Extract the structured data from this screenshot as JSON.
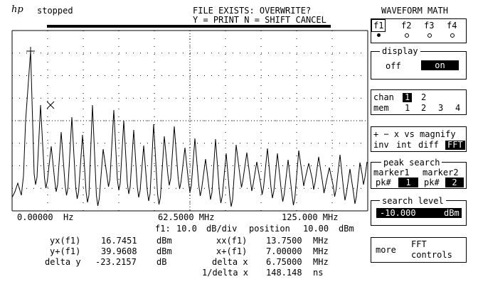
{
  "status": {
    "brand": "hp",
    "run_state": "stopped"
  },
  "prompt": {
    "line1": "FILE EXISTS: OVERWRITE?",
    "line2": "Y = PRINT N = SHIFT CANCEL"
  },
  "axis": {
    "x_start": "0.00000  Hz",
    "x_center": "62.5000 MHz",
    "x_end": "125.000 MHz"
  },
  "scale": {
    "func": "f1:",
    "scale_value": "10.0",
    "scale_unit": "dB/div",
    "position_label": "position",
    "position_value": "10.00",
    "position_unit": "dBm"
  },
  "measurements": {
    "left": [
      {
        "label": "yx(f1)",
        "value": "16.7451",
        "unit": "dBm"
      },
      {
        "label": "y+(f1)",
        "value": "39.9608",
        "unit": "dBm"
      },
      {
        "label": "delta y",
        "value": "-23.2157",
        "unit": "dB"
      }
    ],
    "right": [
      {
        "label": "xx(f1)",
        "value": "13.7500",
        "unit": "MHz"
      },
      {
        "label": "x+(f1)",
        "value": "7.00000",
        "unit": "MHz"
      },
      {
        "label": "delta x",
        "value": "6.75000",
        "unit": "MHz"
      },
      {
        "label": "1/delta x",
        "value": "148.148",
        "unit": "ns"
      }
    ]
  },
  "menu": {
    "title": "WAVEFORM MATH",
    "funcs": [
      "f1",
      "f2",
      "f3",
      "f4"
    ],
    "display": {
      "label": "display",
      "off": "off",
      "on": "on"
    },
    "chan": {
      "label": "chan",
      "ch1": "1",
      "ch2": "2",
      "mem_label": "mem",
      "m1": "1",
      "m2": "2",
      "m3": "3",
      "m4": "4"
    },
    "ops": {
      "line1": "+ − x vs magnify",
      "inv": "inv",
      "int": "int",
      "diff": "diff",
      "fft": "FFT"
    },
    "peak": {
      "label": "peak search",
      "m1": "marker1",
      "m2": "marker2",
      "pk": "pk#",
      "pk1": "1",
      "pk2": "2"
    },
    "level": {
      "label": "search level",
      "value": "-10.000",
      "unit": "dBm"
    },
    "more": {
      "label": "more",
      "line1": "FFT",
      "line2": "controls"
    }
  },
  "trace": {
    "description": "FFT magnitude spectrum",
    "peaks_normalized_values_note": "drawn from script",
    "color": "#000000"
  }
}
